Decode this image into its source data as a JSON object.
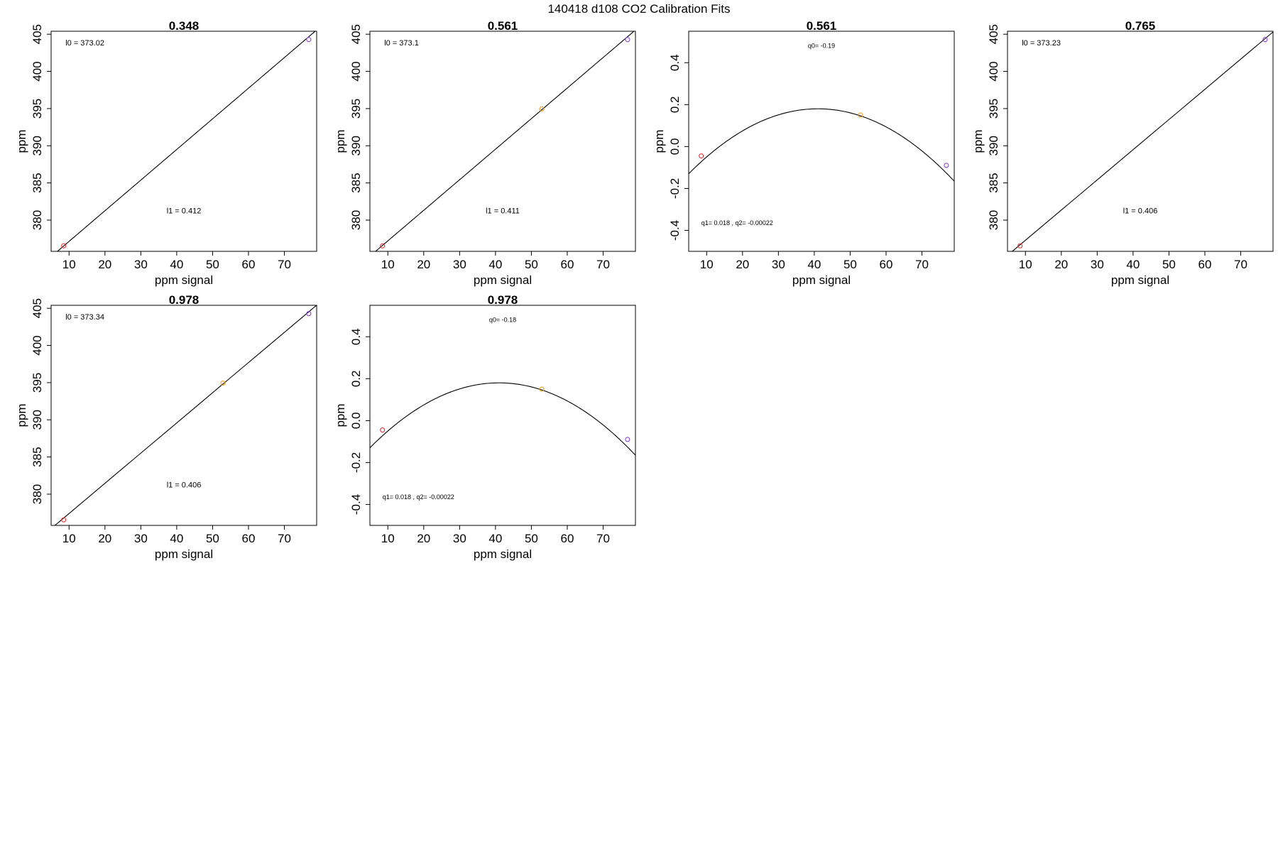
{
  "figure": {
    "title": "140418   d108   CO2 Calibration Fits"
  },
  "colors": {
    "point_low": "#e03030",
    "point_mid": "#f0a020",
    "point_high": "#9040e0",
    "line": "#000000"
  },
  "chart_data": [
    {
      "type": "scatter",
      "title": "0.348",
      "xlabel": "ppm signal",
      "ylabel": "ppm",
      "xlim": [
        5,
        79
      ],
      "ylim": [
        375.8,
        405.4
      ],
      "xticks": [
        10,
        20,
        30,
        40,
        50,
        60,
        70
      ],
      "yticks": [
        380,
        385,
        390,
        395,
        400,
        405
      ],
      "points": [
        {
          "x": 8.5,
          "y": 376.54,
          "color": "point_low"
        },
        {
          "x": 76.8,
          "y": 404.28,
          "color": "point_high"
        }
      ],
      "fit": {
        "kind": "linear",
        "a": 373.02,
        "b": 0.412
      },
      "annotations": [
        {
          "text": "l0 =  373.02",
          "x": 9,
          "y": 403.5,
          "anchor": "start",
          "size": "normal"
        },
        {
          "text": "l1 =  0.412",
          "x": 42,
          "y": 380.9,
          "anchor": "middle",
          "size": "normal"
        }
      ]
    },
    {
      "type": "scatter",
      "title": "0.561",
      "xlabel": "ppm signal",
      "ylabel": "ppm",
      "xlim": [
        5,
        79
      ],
      "ylim": [
        375.8,
        405.4
      ],
      "xticks": [
        10,
        20,
        30,
        40,
        50,
        60,
        70
      ],
      "yticks": [
        380,
        385,
        390,
        395,
        400,
        405
      ],
      "points": [
        {
          "x": 8.5,
          "y": 376.54,
          "color": "point_low"
        },
        {
          "x": 52.9,
          "y": 394.95,
          "color": "point_mid"
        },
        {
          "x": 76.8,
          "y": 404.28,
          "color": "point_high"
        }
      ],
      "fit": {
        "kind": "linear",
        "a": 373.1,
        "b": 0.411
      },
      "annotations": [
        {
          "text": "l0 =  373.1",
          "x": 9,
          "y": 403.5,
          "anchor": "start",
          "size": "normal"
        },
        {
          "text": "l1 =  0.411",
          "x": 42,
          "y": 380.9,
          "anchor": "middle",
          "size": "normal"
        }
      ]
    },
    {
      "type": "scatter",
      "title": "0.561",
      "xlabel": "ppm signal",
      "ylabel": "ppm",
      "xlim": [
        5,
        79
      ],
      "ylim": [
        -0.5,
        0.55
      ],
      "xticks": [
        10,
        20,
        30,
        40,
        50,
        60,
        70
      ],
      "yticks": [
        -0.4,
        -0.2,
        0.0,
        0.2,
        0.4
      ],
      "ytick_labels": [
        "-0.4",
        "-0.2",
        "0.0",
        "0.2",
        "0.4"
      ],
      "points": [
        {
          "x": 8.5,
          "y": -0.045,
          "color": "point_low"
        },
        {
          "x": 52.9,
          "y": 0.15,
          "color": "point_mid"
        },
        {
          "x": 76.8,
          "y": -0.09,
          "color": "point_high"
        }
      ],
      "fit": {
        "kind": "quadratic",
        "vertex_x": 41.0,
        "vertex_y": 0.18,
        "k": 0.000239
      },
      "annotations": [
        {
          "text": "q0= -0.19",
          "x": 42,
          "y": 0.47,
          "anchor": "middle",
          "size": "small"
        },
        {
          "text": "q1= 0.018 , q2= -0.00022",
          "x": 8.5,
          "y": -0.375,
          "anchor": "start",
          "size": "small"
        }
      ]
    },
    {
      "type": "scatter",
      "title": "0.765",
      "xlabel": "ppm signal",
      "ylabel": "ppm",
      "xlim": [
        5,
        79
      ],
      "ylim": [
        375.8,
        405.4
      ],
      "xticks": [
        10,
        20,
        30,
        40,
        50,
        60,
        70
      ],
      "yticks": [
        380,
        385,
        390,
        395,
        400,
        405
      ],
      "points": [
        {
          "x": 8.5,
          "y": 376.54,
          "color": "point_low"
        },
        {
          "x": 76.8,
          "y": 404.28,
          "color": "point_high"
        }
      ],
      "fit": {
        "kind": "linear",
        "a": 373.23,
        "b": 0.406
      },
      "annotations": [
        {
          "text": "l0 =  373.23",
          "x": 9,
          "y": 403.5,
          "anchor": "start",
          "size": "normal"
        },
        {
          "text": "l1 =  0.406",
          "x": 42,
          "y": 380.9,
          "anchor": "middle",
          "size": "normal"
        }
      ]
    },
    {
      "type": "scatter",
      "title": "0.978",
      "xlabel": "ppm signal",
      "ylabel": "ppm",
      "xlim": [
        5,
        79
      ],
      "ylim": [
        375.8,
        405.4
      ],
      "xticks": [
        10,
        20,
        30,
        40,
        50,
        60,
        70
      ],
      "yticks": [
        380,
        385,
        390,
        395,
        400,
        405
      ],
      "points": [
        {
          "x": 8.5,
          "y": 376.54,
          "color": "point_low"
        },
        {
          "x": 52.9,
          "y": 394.95,
          "color": "point_mid"
        },
        {
          "x": 76.8,
          "y": 404.28,
          "color": "point_high"
        }
      ],
      "fit": {
        "kind": "linear",
        "a": 373.34,
        "b": 0.406
      },
      "annotations": [
        {
          "text": "l0 =  373.34",
          "x": 9,
          "y": 403.5,
          "anchor": "start",
          "size": "normal"
        },
        {
          "text": "l1 =  0.406",
          "x": 42,
          "y": 380.9,
          "anchor": "middle",
          "size": "normal"
        }
      ]
    },
    {
      "type": "scatter",
      "title": "0.978",
      "xlabel": "ppm signal",
      "ylabel": "ppm",
      "xlim": [
        5,
        79
      ],
      "ylim": [
        -0.5,
        0.55
      ],
      "xticks": [
        10,
        20,
        30,
        40,
        50,
        60,
        70
      ],
      "yticks": [
        -0.4,
        -0.2,
        0.0,
        0.2,
        0.4
      ],
      "ytick_labels": [
        "-0.4",
        "-0.2",
        "0.0",
        "0.2",
        "0.4"
      ],
      "points": [
        {
          "x": 8.5,
          "y": -0.045,
          "color": "point_low"
        },
        {
          "x": 52.9,
          "y": 0.15,
          "color": "point_mid"
        },
        {
          "x": 76.8,
          "y": -0.09,
          "color": "point_high"
        }
      ],
      "fit": {
        "kind": "quadratic",
        "vertex_x": 41.0,
        "vertex_y": 0.18,
        "k": 0.000239
      },
      "annotations": [
        {
          "text": "q0= -0.18",
          "x": 42,
          "y": 0.47,
          "anchor": "middle",
          "size": "small"
        },
        {
          "text": "q1= 0.018 , q2= -0.00022",
          "x": 8.5,
          "y": -0.375,
          "anchor": "start",
          "size": "small"
        }
      ]
    }
  ]
}
